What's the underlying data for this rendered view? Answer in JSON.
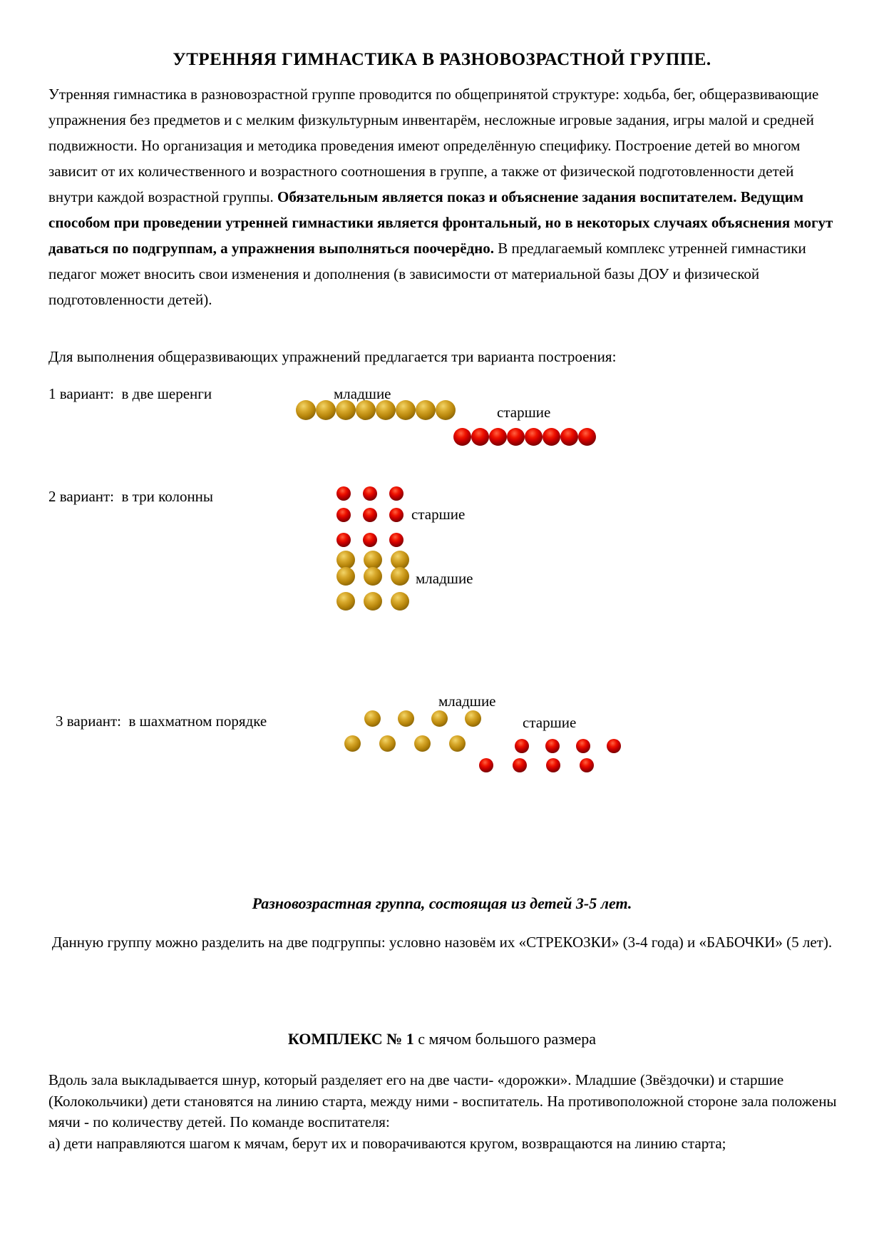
{
  "document": {
    "title": "УТРЕННЯЯ ГИМНАСТИКА В РАЗНОВОЗРАСТНОЙ ГРУППЕ.",
    "intro": {
      "lead": "Утренняя гимнастика в разновозрастной группе проводится по общепринятой структуре: ходьба, бег, общеразвивающие упражнения без предметов и с мелким физкультурным инвентарём, несложные игровые задания, игры малой и средней подвижности. Но организация и методика проведения имеют определённую специфику. Построение детей во многом зависит от их количественного и возрастного соотношения в группе, а также от физической подготовленности детей внутри каждой возрастной группы. ",
      "emphasis": "Обязательным является показ и объяснение задания воспитателем. Ведущим способом при проведении утренней гимнастики является фронтальный, но в некоторых случаях объяснения могут даваться по подгруппам, а упражнения выполняться поочерёдно.",
      "tail": " В предлагаемый комплекс утренней гимнастики педагог может вносить свои изменения и дополнения (в зависимости от материальной базы ДОУ и физической подготовленности детей)."
    },
    "variants_intro": "Для выполнения общеразвивающих упражнений предлагается три варианта построения:",
    "formations": {
      "variant1": {
        "label": "1 вариант:  в две шеренги",
        "younger_label": "младшие",
        "older_label": "старшие",
        "younger_count": 8,
        "older_count": 8
      },
      "variant2": {
        "label": "2 вариант:  в три колонны",
        "older_label": "старшие",
        "younger_label": "младшие",
        "older_rows": [
          3,
          3,
          3
        ],
        "younger_rows": [
          3,
          3,
          3
        ]
      },
      "variant3": {
        "label": "3 вариант:  в шахматном порядке",
        "younger_label": "младшие",
        "older_label": "старшие",
        "younger_rows": [
          4,
          4
        ],
        "older_rows": [
          4,
          4
        ]
      }
    },
    "age_group": {
      "heading": "Разновозрастная группа, состоящая из детей 3-5 лет.",
      "text": "Данную группу можно разделить на две подгруппы: условно назовём их «СТРЕКОЗКИ» (3-4 года) и «БАБОЧКИ» (5 лет)."
    },
    "complex1": {
      "heading_bold": "КОМПЛЕКС № 1",
      "heading_rest": " с мячом большого размера",
      "paragraph": "Вдоль зала выкладывается шнур, который разделяет его на две части- «дорожки». Младшие (Звёздочки) и старшие (Колокольчики) дети становятся на линию старта, между ними - воспитатель. На противоположной стороне зала положены мячи - по количеству детей. По команде воспитателя:",
      "item_a": " а) дети направляются шагом к мячам, берут их и поворачиваются кругом, возвращаются на линию старта;"
    },
    "colors": {
      "younger_ball": "#b8860b",
      "older_ball": "#cf0000"
    }
  }
}
